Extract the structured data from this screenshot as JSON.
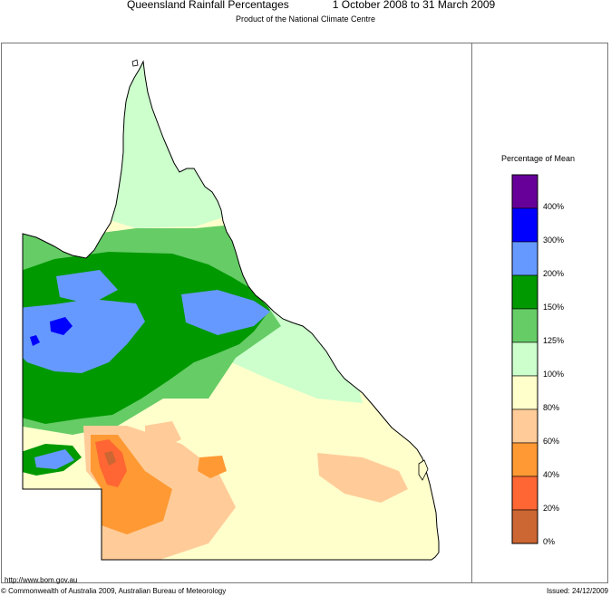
{
  "header": {
    "title": "Queensland Rainfall Percentages",
    "dates": "1 October 2008 to 31 March 2009",
    "subtitle": "Product of the National Climate Centre"
  },
  "legend": {
    "title": "Percentage of Mean",
    "bands": [
      {
        "range": "400%+",
        "color": "#660099"
      },
      {
        "range": "300-400%",
        "color": "#0000ff"
      },
      {
        "range": "200-300%",
        "color": "#6699ff"
      },
      {
        "range": "150-200%",
        "color": "#009900"
      },
      {
        "range": "125-150%",
        "color": "#66cc66"
      },
      {
        "range": "100-125%",
        "color": "#ccffcc"
      },
      {
        "range": "80-100%",
        "color": "#ffffcc"
      },
      {
        "range": "60-80%",
        "color": "#ffcc99"
      },
      {
        "range": "40-60%",
        "color": "#ff9933"
      },
      {
        "range": "20-40%",
        "color": "#ff6633"
      },
      {
        "range": "0-20%",
        "color": "#cc6633"
      }
    ],
    "labels": [
      "400%",
      "300%",
      "200%",
      "150%",
      "125%",
      "100%",
      "80%",
      "60%",
      "40%",
      "20%",
      "0%"
    ]
  },
  "footer": {
    "url": "http://www.bom.gov.au",
    "copyright": "© Commonwealth of Australia 2009, Australian Bureau of Meteorology",
    "issued": "Issued: 24/12/2009"
  }
}
